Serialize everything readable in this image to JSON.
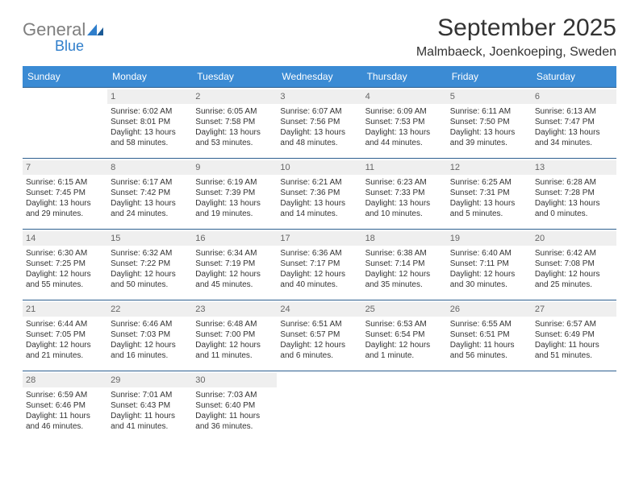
{
  "logo": {
    "word1": "General",
    "word2": "Blue",
    "color_gray": "#7f7f7f",
    "color_blue": "#2f7ecb"
  },
  "title": "September 2025",
  "location": "Malmbaeck, Joenkoeping, Sweden",
  "title_fontsize": 30,
  "location_fontsize": 16,
  "header_bg": "#3b8bd4",
  "header_text_color": "#ffffff",
  "daynum_bg": "#efefef",
  "daynum_color": "#666666",
  "cell_border_color": "#2d5f8f",
  "body_text_color": "#333333",
  "cell_fontsize": 10,
  "columns": [
    "Sunday",
    "Monday",
    "Tuesday",
    "Wednesday",
    "Thursday",
    "Friday",
    "Saturday"
  ],
  "weeks": [
    [
      {
        "n": "",
        "sunrise": "",
        "sunset": "",
        "daylight": ""
      },
      {
        "n": "1",
        "sunrise": "Sunrise: 6:02 AM",
        "sunset": "Sunset: 8:01 PM",
        "daylight": "Daylight: 13 hours and 58 minutes."
      },
      {
        "n": "2",
        "sunrise": "Sunrise: 6:05 AM",
        "sunset": "Sunset: 7:58 PM",
        "daylight": "Daylight: 13 hours and 53 minutes."
      },
      {
        "n": "3",
        "sunrise": "Sunrise: 6:07 AM",
        "sunset": "Sunset: 7:56 PM",
        "daylight": "Daylight: 13 hours and 48 minutes."
      },
      {
        "n": "4",
        "sunrise": "Sunrise: 6:09 AM",
        "sunset": "Sunset: 7:53 PM",
        "daylight": "Daylight: 13 hours and 44 minutes."
      },
      {
        "n": "5",
        "sunrise": "Sunrise: 6:11 AM",
        "sunset": "Sunset: 7:50 PM",
        "daylight": "Daylight: 13 hours and 39 minutes."
      },
      {
        "n": "6",
        "sunrise": "Sunrise: 6:13 AM",
        "sunset": "Sunset: 7:47 PM",
        "daylight": "Daylight: 13 hours and 34 minutes."
      }
    ],
    [
      {
        "n": "7",
        "sunrise": "Sunrise: 6:15 AM",
        "sunset": "Sunset: 7:45 PM",
        "daylight": "Daylight: 13 hours and 29 minutes."
      },
      {
        "n": "8",
        "sunrise": "Sunrise: 6:17 AM",
        "sunset": "Sunset: 7:42 PM",
        "daylight": "Daylight: 13 hours and 24 minutes."
      },
      {
        "n": "9",
        "sunrise": "Sunrise: 6:19 AM",
        "sunset": "Sunset: 7:39 PM",
        "daylight": "Daylight: 13 hours and 19 minutes."
      },
      {
        "n": "10",
        "sunrise": "Sunrise: 6:21 AM",
        "sunset": "Sunset: 7:36 PM",
        "daylight": "Daylight: 13 hours and 14 minutes."
      },
      {
        "n": "11",
        "sunrise": "Sunrise: 6:23 AM",
        "sunset": "Sunset: 7:33 PM",
        "daylight": "Daylight: 13 hours and 10 minutes."
      },
      {
        "n": "12",
        "sunrise": "Sunrise: 6:25 AM",
        "sunset": "Sunset: 7:31 PM",
        "daylight": "Daylight: 13 hours and 5 minutes."
      },
      {
        "n": "13",
        "sunrise": "Sunrise: 6:28 AM",
        "sunset": "Sunset: 7:28 PM",
        "daylight": "Daylight: 13 hours and 0 minutes."
      }
    ],
    [
      {
        "n": "14",
        "sunrise": "Sunrise: 6:30 AM",
        "sunset": "Sunset: 7:25 PM",
        "daylight": "Daylight: 12 hours and 55 minutes."
      },
      {
        "n": "15",
        "sunrise": "Sunrise: 6:32 AM",
        "sunset": "Sunset: 7:22 PM",
        "daylight": "Daylight: 12 hours and 50 minutes."
      },
      {
        "n": "16",
        "sunrise": "Sunrise: 6:34 AM",
        "sunset": "Sunset: 7:19 PM",
        "daylight": "Daylight: 12 hours and 45 minutes."
      },
      {
        "n": "17",
        "sunrise": "Sunrise: 6:36 AM",
        "sunset": "Sunset: 7:17 PM",
        "daylight": "Daylight: 12 hours and 40 minutes."
      },
      {
        "n": "18",
        "sunrise": "Sunrise: 6:38 AM",
        "sunset": "Sunset: 7:14 PM",
        "daylight": "Daylight: 12 hours and 35 minutes."
      },
      {
        "n": "19",
        "sunrise": "Sunrise: 6:40 AM",
        "sunset": "Sunset: 7:11 PM",
        "daylight": "Daylight: 12 hours and 30 minutes."
      },
      {
        "n": "20",
        "sunrise": "Sunrise: 6:42 AM",
        "sunset": "Sunset: 7:08 PM",
        "daylight": "Daylight: 12 hours and 25 minutes."
      }
    ],
    [
      {
        "n": "21",
        "sunrise": "Sunrise: 6:44 AM",
        "sunset": "Sunset: 7:05 PM",
        "daylight": "Daylight: 12 hours and 21 minutes."
      },
      {
        "n": "22",
        "sunrise": "Sunrise: 6:46 AM",
        "sunset": "Sunset: 7:03 PM",
        "daylight": "Daylight: 12 hours and 16 minutes."
      },
      {
        "n": "23",
        "sunrise": "Sunrise: 6:48 AM",
        "sunset": "Sunset: 7:00 PM",
        "daylight": "Daylight: 12 hours and 11 minutes."
      },
      {
        "n": "24",
        "sunrise": "Sunrise: 6:51 AM",
        "sunset": "Sunset: 6:57 PM",
        "daylight": "Daylight: 12 hours and 6 minutes."
      },
      {
        "n": "25",
        "sunrise": "Sunrise: 6:53 AM",
        "sunset": "Sunset: 6:54 PM",
        "daylight": "Daylight: 12 hours and 1 minute."
      },
      {
        "n": "26",
        "sunrise": "Sunrise: 6:55 AM",
        "sunset": "Sunset: 6:51 PM",
        "daylight": "Daylight: 11 hours and 56 minutes."
      },
      {
        "n": "27",
        "sunrise": "Sunrise: 6:57 AM",
        "sunset": "Sunset: 6:49 PM",
        "daylight": "Daylight: 11 hours and 51 minutes."
      }
    ],
    [
      {
        "n": "28",
        "sunrise": "Sunrise: 6:59 AM",
        "sunset": "Sunset: 6:46 PM",
        "daylight": "Daylight: 11 hours and 46 minutes."
      },
      {
        "n": "29",
        "sunrise": "Sunrise: 7:01 AM",
        "sunset": "Sunset: 6:43 PM",
        "daylight": "Daylight: 11 hours and 41 minutes."
      },
      {
        "n": "30",
        "sunrise": "Sunrise: 7:03 AM",
        "sunset": "Sunset: 6:40 PM",
        "daylight": "Daylight: 11 hours and 36 minutes."
      },
      {
        "n": "",
        "sunrise": "",
        "sunset": "",
        "daylight": ""
      },
      {
        "n": "",
        "sunrise": "",
        "sunset": "",
        "daylight": ""
      },
      {
        "n": "",
        "sunrise": "",
        "sunset": "",
        "daylight": ""
      },
      {
        "n": "",
        "sunrise": "",
        "sunset": "",
        "daylight": ""
      }
    ]
  ]
}
